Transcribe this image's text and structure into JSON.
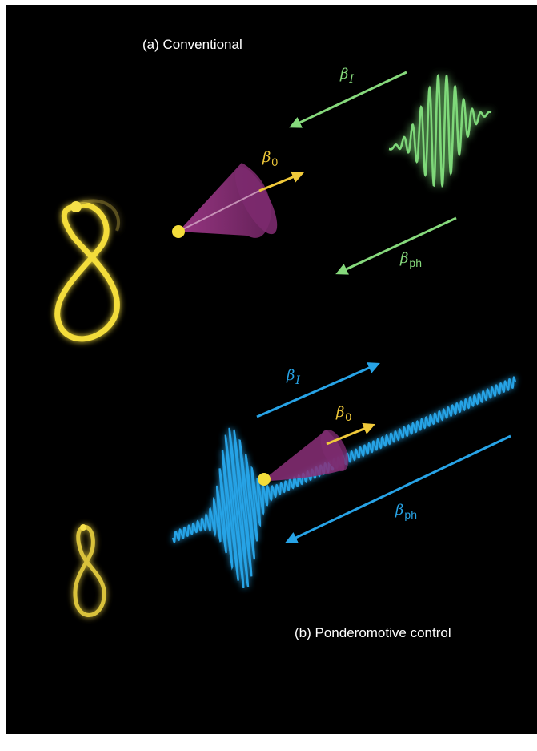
{
  "labels": {
    "panel_a": "(a) Conventional",
    "panel_b": "(b) Ponderomotive control"
  },
  "symbols": {
    "beta": "β",
    "beta_I_sub": "I",
    "beta_0_sub": "0",
    "beta_ph_sub": "ph"
  },
  "colors": {
    "background": "#000000",
    "laser_a": "#7fd97a",
    "laser_b": "#27a3e6",
    "electron": "#f3dc3a",
    "cone": "#8a2f78"
  }
}
